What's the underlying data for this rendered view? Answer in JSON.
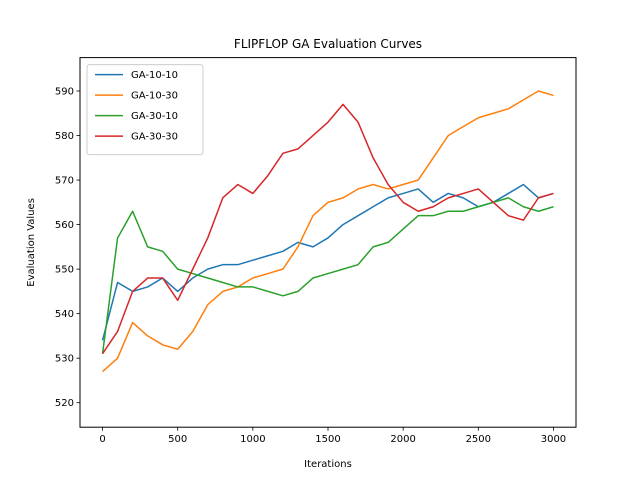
{
  "chart_data": {
    "type": "line",
    "title": "FLIPFLOP GA Evaluation Curves",
    "xlabel": "Iterations",
    "ylabel": "Evaluation Values",
    "xlim": [
      -150,
      3150
    ],
    "ylim": [
      514.5,
      597.5
    ],
    "xticks": [
      0,
      500,
      1000,
      1500,
      2000,
      2500,
      3000
    ],
    "yticks": [
      520,
      530,
      540,
      550,
      560,
      570,
      580,
      590
    ],
    "grid": false,
    "legend": "top-left",
    "x": [
      0,
      100,
      200,
      300,
      400,
      500,
      600,
      700,
      800,
      900,
      1000,
      1100,
      1200,
      1300,
      1400,
      1500,
      1600,
      1700,
      1800,
      1900,
      2000,
      2100,
      2200,
      2300,
      2400,
      2500,
      2600,
      2700,
      2800,
      2900,
      3000
    ],
    "series": [
      {
        "name": "GA-10-10",
        "color": "#1f77b4",
        "values": [
          534,
          547,
          545,
          546,
          548,
          545,
          548,
          550,
          551,
          551,
          552,
          553,
          554,
          556,
          555,
          557,
          560,
          562,
          564,
          566,
          567,
          568,
          565,
          567,
          566,
          564,
          565,
          567,
          569,
          566,
          567
        ]
      },
      {
        "name": "GA-10-30",
        "color": "#ff7f0e",
        "values": [
          527,
          530,
          538,
          535,
          533,
          532,
          536,
          542,
          545,
          546,
          548,
          549,
          550,
          555,
          562,
          565,
          566,
          568,
          569,
          568,
          569,
          570,
          575,
          580,
          582,
          584,
          585,
          586,
          588,
          590,
          589
        ]
      },
      {
        "name": "GA-30-10",
        "color": "#2ca02c",
        "values": [
          531,
          557,
          563,
          555,
          554,
          550,
          549,
          548,
          547,
          546,
          546,
          545,
          544,
          545,
          548,
          549,
          550,
          551,
          555,
          556,
          559,
          562,
          562,
          563,
          563,
          564,
          565,
          566,
          564,
          563,
          564
        ]
      },
      {
        "name": "GA-30-30",
        "color": "#d62728",
        "values": [
          531,
          536,
          545,
          548,
          548,
          543,
          550,
          557,
          566,
          569,
          567,
          571,
          576,
          577,
          580,
          583,
          587,
          583,
          575,
          569,
          565,
          563,
          564,
          566,
          567,
          568,
          565,
          562,
          561,
          566,
          567
        ]
      }
    ]
  }
}
